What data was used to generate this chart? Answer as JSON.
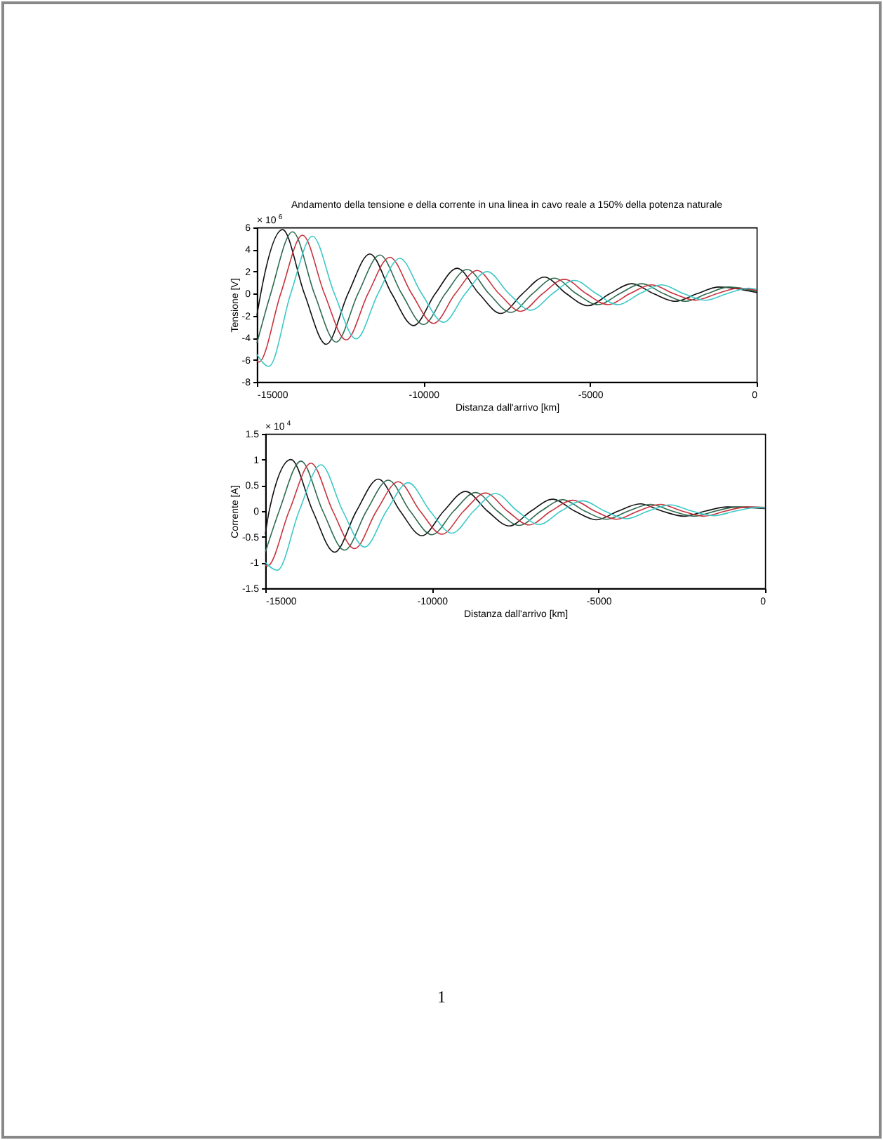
{
  "chart_data": [
    {
      "type": "line",
      "title": "Andamento della tensione e della corrente in una linea in cavo reale a 150% della potenza naturale",
      "xlabel": "Distanza dall'arrivo [km]",
      "ylabel": "Tensione [V]",
      "annotations": [
        "× 10$^{6}$"
      ],
      "xlim": [
        -15000,
        0
      ],
      "xticks": [
        -15000,
        -10000,
        -5000,
        0
      ],
      "ylim": [
        -8,
        6
      ],
      "yticks": [
        -8,
        -6,
        -4,
        -2,
        0,
        2,
        4,
        6
      ],
      "grid": false,
      "legend": false,
      "line_style": "solid",
      "marker": "none",
      "series": [
        {
          "color": "#111111",
          "x": [
            -15000,
            -14885,
            -14230,
            -13575,
            -12920,
            -12265,
            -11610,
            -10955,
            -10300,
            -9645,
            -8990,
            -8335,
            -7680,
            -7025,
            -6370,
            -5715,
            -5060,
            -4405,
            -3750,
            -3095,
            -2440,
            -1785,
            -1130,
            0
          ],
          "values": [
            -2.0,
            0,
            5.8,
            0,
            -4.6,
            0,
            3.6,
            0,
            -2.9,
            0,
            2.3,
            0,
            -1.8,
            0,
            1.5,
            0,
            -1.1,
            0,
            0.9,
            0,
            -0.7,
            0,
            0.6,
            0.1
          ]
        },
        {
          "color": "#2e6b4e",
          "x": [
            -15000,
            -14585,
            -13930,
            -13275,
            -12620,
            -11965,
            -11310,
            -10655,
            -10000,
            -9345,
            -8690,
            -8035,
            -7380,
            -6725,
            -6070,
            -5415,
            -4760,
            -4105,
            -3450,
            -2795,
            -2140,
            -1485,
            -830,
            0
          ],
          "values": [
            -4.5,
            0,
            5.6,
            0,
            -4.4,
            0,
            3.5,
            0,
            -2.8,
            0,
            2.2,
            0,
            -1.7,
            0,
            1.4,
            0,
            -1.0,
            0,
            0.9,
            0,
            -0.7,
            0,
            0.6,
            0.2
          ]
        },
        {
          "color": "#c8323c",
          "x": [
            -15000,
            -14940,
            -14285,
            -13630,
            -12975,
            -12320,
            -11665,
            -11010,
            -10355,
            -9700,
            -9045,
            -8390,
            -7735,
            -7080,
            -6425,
            -5770,
            -5115,
            -4460,
            -3805,
            -3150,
            -2495,
            -1840,
            -1185,
            -530,
            0
          ],
          "values": [
            -6.1,
            -6.2,
            0,
            5.3,
            0,
            -4.2,
            0,
            3.3,
            0,
            -2.7,
            0,
            2.1,
            0,
            -1.6,
            0,
            1.3,
            0,
            -1.0,
            0,
            0.8,
            0,
            -0.6,
            0,
            0.5,
            0.3
          ]
        },
        {
          "color": "#3cc8c8",
          "x": [
            -15000,
            -14640,
            -13985,
            -13330,
            -12675,
            -12020,
            -11365,
            -10710,
            -10055,
            -9400,
            -8745,
            -8090,
            -7435,
            -6780,
            -6125,
            -5470,
            -4815,
            -4160,
            -3505,
            -2850,
            -2195,
            -1540,
            -885,
            -230,
            0
          ],
          "values": [
            -5.5,
            -6.6,
            0,
            5.2,
            0,
            -4.1,
            0,
            3.2,
            0,
            -2.6,
            0,
            2.0,
            0,
            -1.5,
            0,
            1.2,
            0,
            -1.0,
            0,
            0.8,
            0,
            -0.6,
            0,
            0.5,
            0.4
          ]
        }
      ]
    },
    {
      "type": "line",
      "xlabel": "Distanza dall'arrivo [km]",
      "ylabel": "Corrente [A]",
      "annotations": [
        "× 10$^{4}$",
        "1"
      ],
      "xlim": [
        -15000,
        0
      ],
      "xticks": [
        -15000,
        -10000,
        -5000,
        0
      ],
      "ylim": [
        -1.5,
        1.5
      ],
      "yticks": [
        -1.5,
        -1,
        -0.5,
        0,
        0.5,
        1,
        1.5
      ],
      "grid": false,
      "legend": false,
      "line_style": "solid",
      "marker": "none",
      "series": [
        {
          "color": "#111111",
          "x": [
            -15000,
            -14885,
            -14230,
            -13575,
            -12920,
            -12265,
            -11610,
            -10955,
            -10300,
            -9645,
            -8990,
            -8335,
            -7680,
            -7025,
            -6370,
            -5715,
            -5060,
            -4405,
            -3750,
            -3095,
            -2440,
            -1785,
            -1130,
            0
          ],
          "values": [
            -0.45,
            0,
            1.0,
            0,
            -0.8,
            0,
            0.62,
            0,
            -0.48,
            0,
            0.38,
            0,
            -0.29,
            0,
            0.23,
            0,
            -0.17,
            0,
            0.14,
            0,
            -0.1,
            0,
            0.08,
            0.05
          ]
        },
        {
          "color": "#2e6b4e",
          "x": [
            -15000,
            -14585,
            -13930,
            -13275,
            -12620,
            -11965,
            -11310,
            -10655,
            -10000,
            -9345,
            -8690,
            -8035,
            -7380,
            -6725,
            -6070,
            -5415,
            -4760,
            -4105,
            -3450,
            -2795,
            -2140,
            -1485,
            -830,
            0
          ],
          "values": [
            -0.8,
            0,
            0.97,
            0,
            -0.76,
            0,
            0.6,
            0,
            -0.46,
            0,
            0.36,
            0,
            -0.28,
            0,
            0.22,
            0,
            -0.16,
            0,
            0.13,
            0,
            -0.1,
            0,
            0.08,
            0.07
          ]
        },
        {
          "color": "#c8323c",
          "x": [
            -15000,
            -14940,
            -14285,
            -13630,
            -12975,
            -12320,
            -11665,
            -11010,
            -10355,
            -9700,
            -9045,
            -8390,
            -7735,
            -7080,
            -6425,
            -5770,
            -5115,
            -4460,
            -3805,
            -3150,
            -2495,
            -1840,
            -1185,
            -530,
            0
          ],
          "values": [
            -1.05,
            -1.07,
            0,
            0.93,
            0,
            -0.73,
            0,
            0.57,
            0,
            -0.45,
            0,
            0.35,
            0,
            -0.27,
            0,
            0.21,
            0,
            -0.16,
            0,
            0.13,
            0,
            -0.1,
            0,
            0.08,
            0.07
          ]
        },
        {
          "color": "#3cc8c8",
          "x": [
            -15000,
            -14640,
            -13985,
            -13330,
            -12675,
            -12020,
            -11365,
            -10710,
            -10055,
            -9400,
            -8745,
            -8090,
            -7435,
            -6780,
            -6125,
            -5470,
            -4815,
            -4160,
            -3505,
            -2850,
            -2195,
            -1540,
            -885,
            -230,
            0
          ],
          "values": [
            -1.0,
            -1.15,
            0,
            0.9,
            0,
            -0.7,
            0,
            0.55,
            0,
            -0.43,
            0,
            0.34,
            0,
            -0.26,
            0,
            0.2,
            0,
            -0.15,
            0,
            0.12,
            0,
            -0.09,
            0,
            0.07,
            0.06
          ]
        }
      ]
    }
  ]
}
